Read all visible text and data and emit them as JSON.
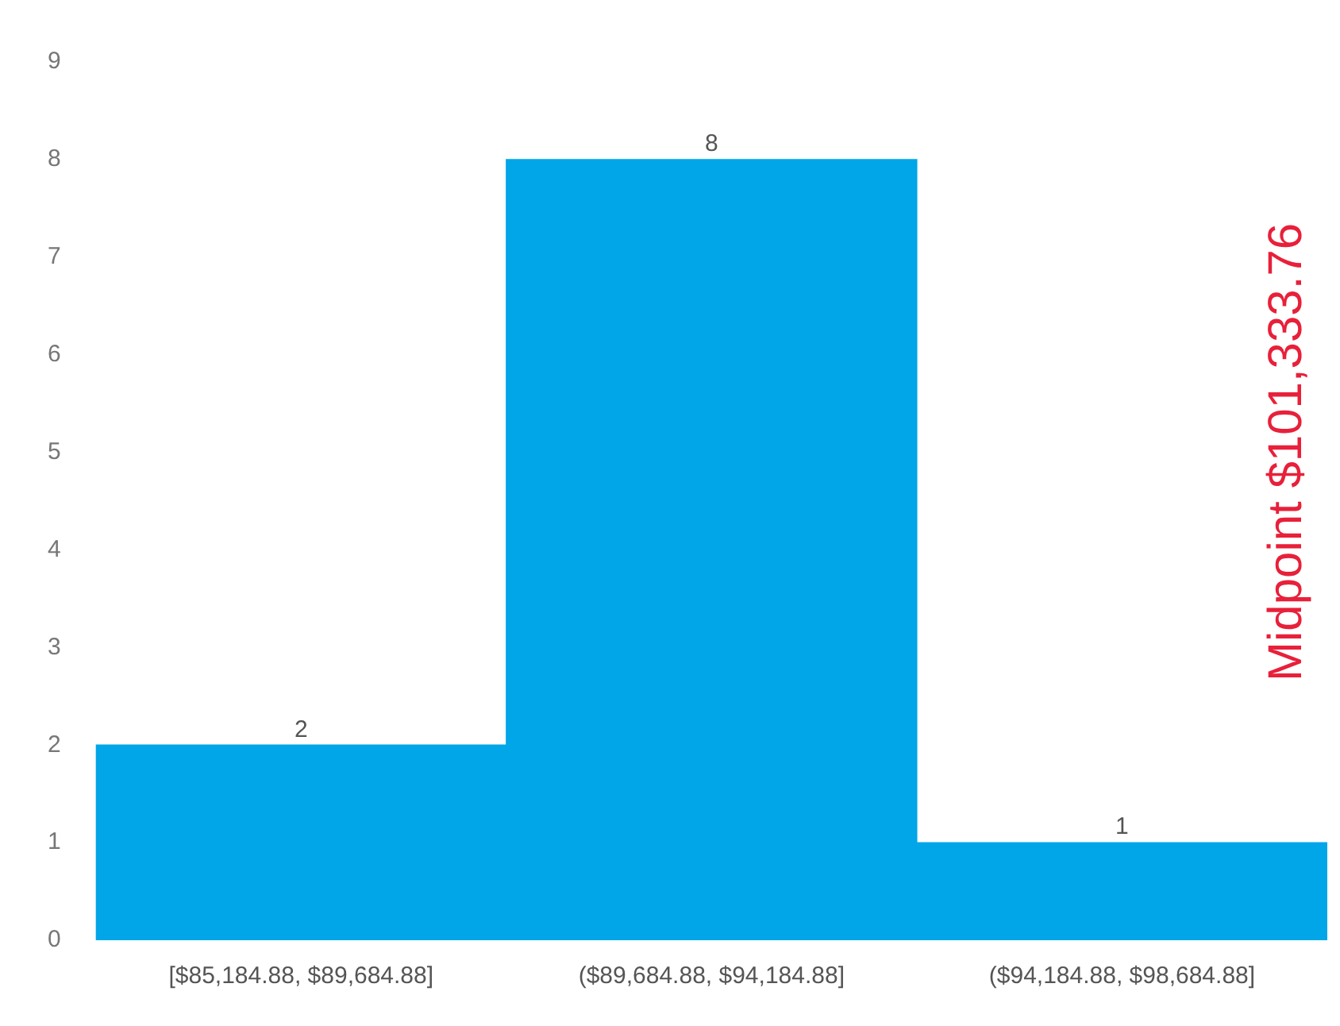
{
  "chart_data": {
    "type": "bar",
    "categories": [
      "[$85,184.88, $89,684.88]",
      "($89,684.88, $94,184.88]",
      "($94,184.88, $98,684.88]"
    ],
    "values": [
      2,
      8,
      1
    ],
    "color": "#00a6e8",
    "ylim": [
      0,
      9
    ],
    "yticks": [
      0,
      1,
      2,
      3,
      4,
      5,
      6,
      7,
      8,
      9
    ],
    "grid": false,
    "legend": false,
    "data_labels": true,
    "annotations": [
      "Midpoint $101,333.76"
    ]
  }
}
